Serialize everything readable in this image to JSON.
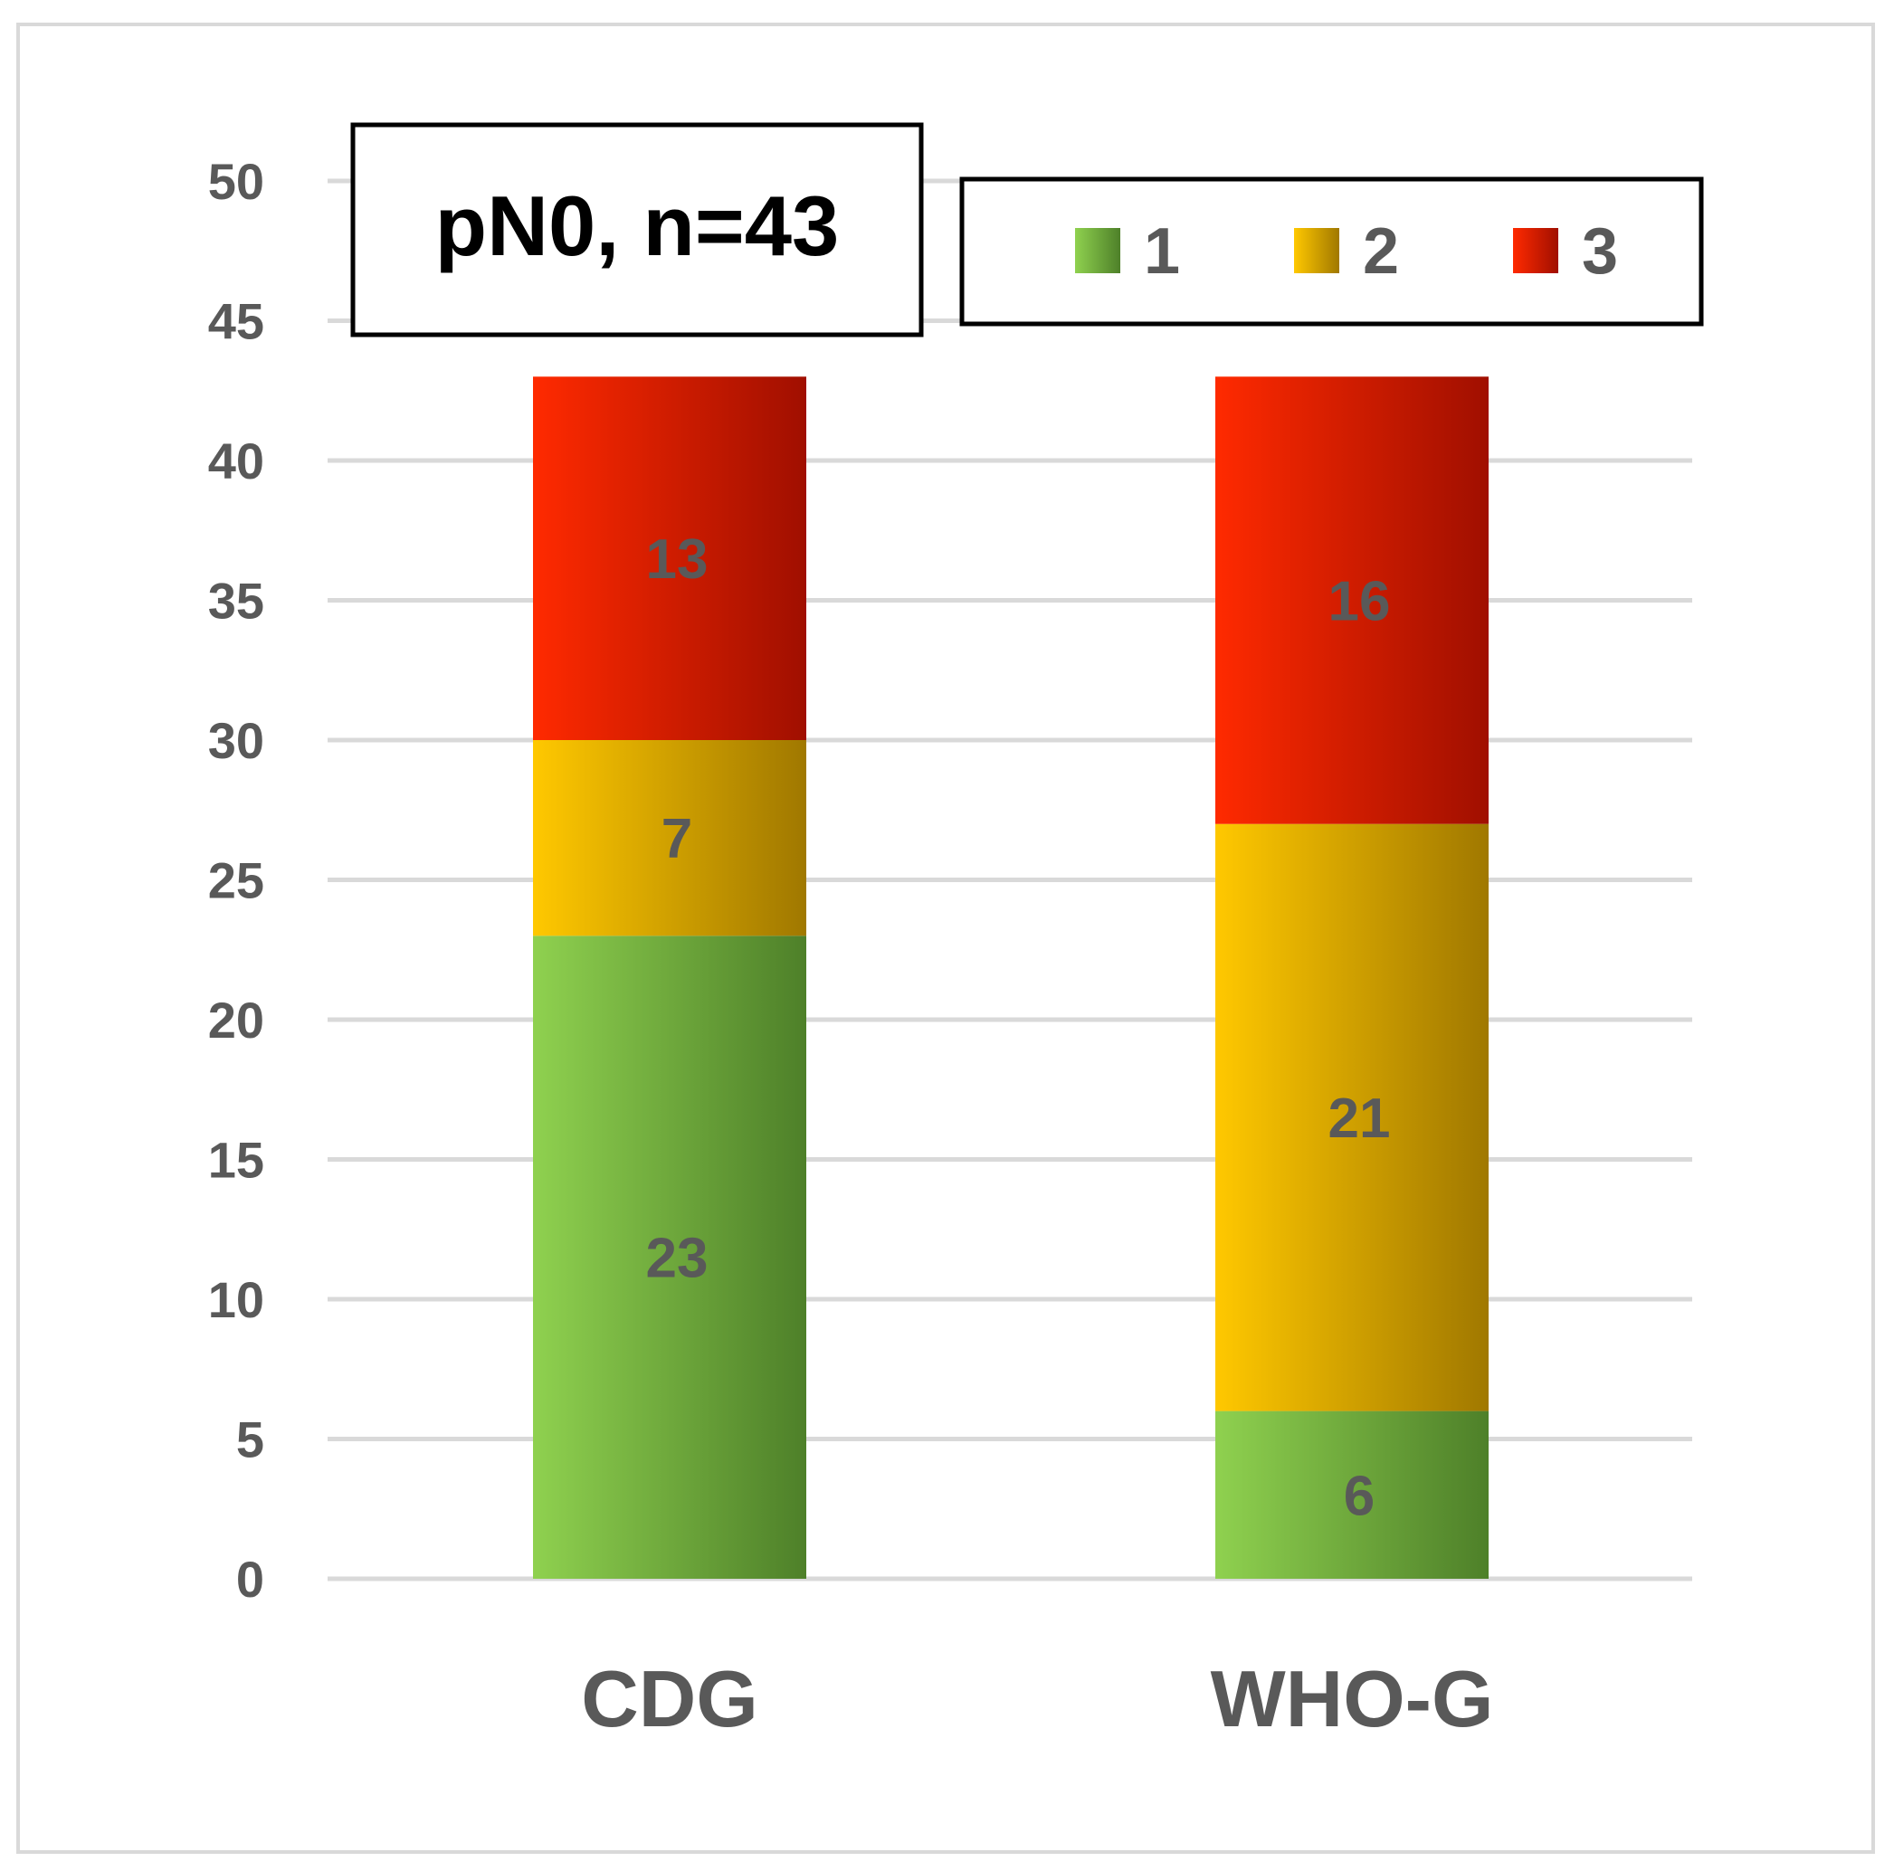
{
  "chart_data": {
    "type": "bar",
    "stacked": true,
    "title": "pN0, n=43",
    "categories": [
      "CDG",
      "WHO-G"
    ],
    "series": [
      {
        "name": "1",
        "values": [
          23,
          6
        ],
        "color": "#8fd14f",
        "color_dark": "#4e8029"
      },
      {
        "name": "2",
        "values": [
          7,
          21
        ],
        "color": "#ffc800",
        "color_dark": "#a07800"
      },
      {
        "name": "3",
        "values": [
          13,
          16
        ],
        "color": "#ff2a00",
        "color_dark": "#a00f00"
      }
    ],
    "y_ticks": [
      "0",
      "5",
      "10",
      "15",
      "20",
      "25",
      "30",
      "35",
      "40",
      "45",
      "50"
    ],
    "ylim": [
      0,
      50
    ],
    "grid": true,
    "legend_position": "top-right",
    "xlabel": "",
    "ylabel": ""
  },
  "colors": {
    "grid": "#d9d9d9",
    "text": "#595959",
    "frame": "#d9d9d9"
  }
}
